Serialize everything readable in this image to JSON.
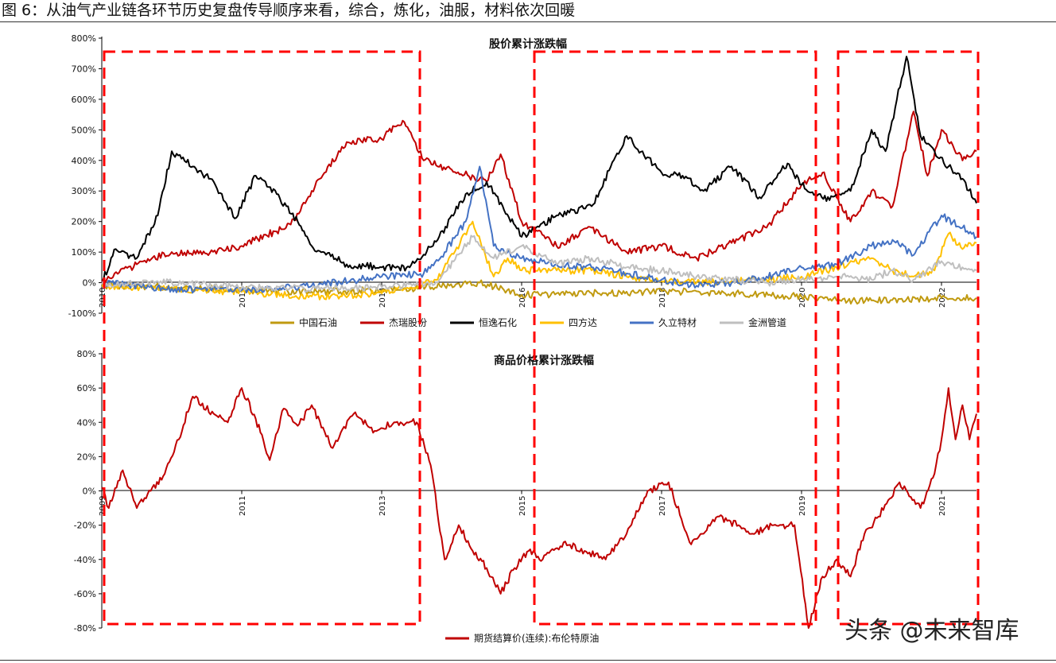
{
  "figure_title": "图 6：从油气产业链各环节历史复盘传导顺序来看，综合，炼化，油服，材料依次回暖",
  "watermark": "头条 @未来智库",
  "colors": {
    "zhongguo_shiyou": "#c09a10",
    "jierui": "#c00000",
    "hengyi": "#000000",
    "sifangda": "#ffc000",
    "jiuli": "#4472c4",
    "jinzhou": "#bfbfbf",
    "brent": "#c00000",
    "highlight_box": "#ff0000"
  },
  "chart_data": [
    {
      "type": "line",
      "title": "股价累计涨跌幅",
      "yticks": [
        "800%",
        "700%",
        "600%",
        "500%",
        "400%",
        "300%",
        "200%",
        "100%",
        "0%",
        "-100%"
      ],
      "ylim": [
        -100,
        800
      ],
      "xlim": [
        2010,
        2022.5
      ],
      "xticks": [
        {
          "value": 2010,
          "label": "2010"
        },
        {
          "value": 2012,
          "label": "2012"
        },
        {
          "value": 2014,
          "label": "2014"
        },
        {
          "value": 2016,
          "label": "2016"
        },
        {
          "value": 2018,
          "label": "2018"
        },
        {
          "value": 2020,
          "label": "2020"
        },
        {
          "value": 2022,
          "label": "2022"
        }
      ],
      "legend_position": "bottom",
      "grid": false,
      "series": [
        {
          "name": "中国石油",
          "color_key": "zhongguo_shiyou",
          "x": [
            2010,
            2011,
            2012,
            2013,
            2014,
            2014.9,
            2015.4,
            2016,
            2017,
            2018,
            2019,
            2020,
            2020.5,
            2021,
            2021.5,
            2022,
            2022.5
          ],
          "y": [
            -8,
            -15,
            -25,
            -30,
            -25,
            -10,
            0,
            -40,
            -35,
            -28,
            -35,
            -45,
            -58,
            -58,
            -55,
            -50,
            -50
          ]
        },
        {
          "name": "杰瑞股份",
          "color_key": "jierui",
          "x": [
            2010,
            2010.5,
            2011,
            2011.5,
            2012,
            2012.7,
            2013,
            2013.5,
            2014,
            2014.3,
            2014.6,
            2015,
            2015.5,
            2015.7,
            2016,
            2016.5,
            2017,
            2017.5,
            2018,
            2018.5,
            2019,
            2019.5,
            2020,
            2020.3,
            2020.7,
            2021,
            2021.3,
            2021.6,
            2021.8,
            2022,
            2022.3,
            2022.5
          ],
          "y": [
            0,
            60,
            100,
            95,
            120,
            190,
            300,
            460,
            470,
            530,
            400,
            370,
            330,
            420,
            200,
            120,
            180,
            100,
            120,
            80,
            130,
            180,
            320,
            360,
            200,
            300,
            250,
            560,
            350,
            500,
            400,
            430
          ]
        },
        {
          "name": "恒逸石化",
          "color_key": "hengyi",
          "x": [
            2010,
            2010.2,
            2010.5,
            2010.8,
            2011,
            2011.3,
            2011.6,
            2011.9,
            2012.2,
            2012.5,
            2012.8,
            2013,
            2013.5,
            2014,
            2014.4,
            2014.8,
            2015.2,
            2015.5,
            2016,
            2016.5,
            2017,
            2017.5,
            2018,
            2018.3,
            2018.6,
            2019,
            2019.4,
            2019.8,
            2020,
            2020.4,
            2020.7,
            2021,
            2021.2,
            2021.5,
            2021.7,
            2021.9,
            2022.1,
            2022.3,
            2022.5
          ],
          "y": [
            0,
            110,
            80,
            220,
            430,
            380,
            330,
            210,
            350,
            290,
            200,
            120,
            60,
            50,
            50,
            140,
            290,
            330,
            150,
            220,
            250,
            480,
            360,
            350,
            300,
            380,
            280,
            390,
            320,
            270,
            300,
            500,
            430,
            740,
            480,
            430,
            380,
            340,
            260
          ]
        },
        {
          "name": "四方达",
          "color_key": "sifangda",
          "x": [
            2010,
            2011,
            2012,
            2013,
            2014,
            2014.8,
            2015.3,
            2015.6,
            2015.8,
            2016,
            2016.5,
            2017,
            2017.5,
            2018,
            2018.5,
            2019,
            2019.5,
            2020,
            2020.5,
            2021,
            2021.3,
            2021.6,
            2021.9,
            2022.1,
            2022.3,
            2022.5
          ],
          "y": [
            -10,
            -20,
            -30,
            -45,
            -35,
            10,
            200,
            20,
            80,
            40,
            40,
            40,
            20,
            5,
            0,
            5,
            10,
            20,
            50,
            80,
            40,
            20,
            40,
            160,
            110,
            130
          ]
        },
        {
          "name": "久立特材",
          "color_key": "jiuli",
          "x": [
            2010,
            2011,
            2012,
            2013,
            2014,
            2014.6,
            2014.9,
            2015.2,
            2015.4,
            2015.6,
            2016,
            2016.5,
            2017,
            2017.5,
            2018,
            2018.5,
            2019,
            2019.5,
            2020,
            2020.5,
            2021,
            2021.3,
            2021.6,
            2022,
            2022.3,
            2022.5
          ],
          "y": [
            0,
            -20,
            -25,
            -10,
            20,
            30,
            100,
            200,
            380,
            120,
            80,
            60,
            50,
            30,
            10,
            -10,
            0,
            20,
            50,
            60,
            120,
            140,
            90,
            220,
            180,
            150
          ]
        },
        {
          "name": "金洲管道",
          "color_key": "jinzhou",
          "x": [
            2010,
            2011,
            2012,
            2013,
            2014,
            2014.8,
            2015.3,
            2015.6,
            2016,
            2016.5,
            2017,
            2017.5,
            2018,
            2018.5,
            2019,
            2019.5,
            2020,
            2020.5,
            2021,
            2021.3,
            2021.6,
            2022,
            2022.3,
            2022.5
          ],
          "y": [
            -5,
            0,
            -15,
            -20,
            -15,
            0,
            150,
            80,
            120,
            60,
            80,
            50,
            40,
            20,
            10,
            0,
            10,
            20,
            10,
            40,
            10,
            70,
            50,
            40
          ]
        }
      ]
    },
    {
      "type": "line",
      "title": "商品价格累计涨跌幅",
      "yticks": [
        "80%",
        "60%",
        "40%",
        "20%",
        "0%",
        "-20%",
        "-40%",
        "-60%",
        "-80%"
      ],
      "ylim": [
        -80,
        80
      ],
      "xlim": [
        2009,
        2021.5
      ],
      "xticks": [
        {
          "value": 2009,
          "label": "2009"
        },
        {
          "value": 2011,
          "label": "2011"
        },
        {
          "value": 2013,
          "label": "2013"
        },
        {
          "value": 2015,
          "label": "2015"
        },
        {
          "value": 2017,
          "label": "2017"
        },
        {
          "value": 2019,
          "label": "2019"
        },
        {
          "value": 2021,
          "label": "2021"
        }
      ],
      "legend_position": "bottom",
      "grid": false,
      "series": [
        {
          "name": "期货结算价(连续):布伦特原油",
          "color_key": "brent",
          "x": [
            2009,
            2009.1,
            2009.3,
            2009.5,
            2009.7,
            2009.9,
            2010.1,
            2010.3,
            2010.6,
            2010.8,
            2011,
            2011.2,
            2011.4,
            2011.6,
            2011.8,
            2012,
            2012.3,
            2012.6,
            2012.9,
            2013.2,
            2013.5,
            2013.7,
            2013.9,
            2014.1,
            2014.3,
            2014.5,
            2014.7,
            2014.9,
            2015.1,
            2015.3,
            2015.6,
            2015.9,
            2016.2,
            2016.5,
            2016.8,
            2017.1,
            2017.4,
            2017.6,
            2017.8,
            2018.1,
            2018.3,
            2018.6,
            2018.9,
            2019.1,
            2019.3,
            2019.5,
            2019.7,
            2019.9,
            2020.1,
            2020.4,
            2020.7,
            2020.9,
            2021,
            2021.1,
            2021.2,
            2021.3,
            2021.4,
            2021.5
          ],
          "y": [
            2,
            -10,
            12,
            -10,
            0,
            10,
            30,
            55,
            45,
            40,
            60,
            42,
            18,
            48,
            38,
            50,
            25,
            45,
            35,
            40,
            40,
            15,
            -40,
            -20,
            -35,
            -45,
            -60,
            -45,
            -35,
            -40,
            -30,
            -35,
            -40,
            -25,
            0,
            5,
            -30,
            -25,
            -15,
            -20,
            -25,
            -20,
            -20,
            -80,
            -50,
            -40,
            -50,
            -25,
            -15,
            5,
            -10,
            10,
            30,
            60,
            30,
            50,
            30,
            45
          ]
        }
      ]
    }
  ],
  "highlight_boxes": [
    {
      "x0": 0.125,
      "x1": 0.525
    },
    {
      "x0": 0.665,
      "x1": 1.05
    },
    {
      "x0": 1.05,
      "x1": 1.3
    }
  ]
}
